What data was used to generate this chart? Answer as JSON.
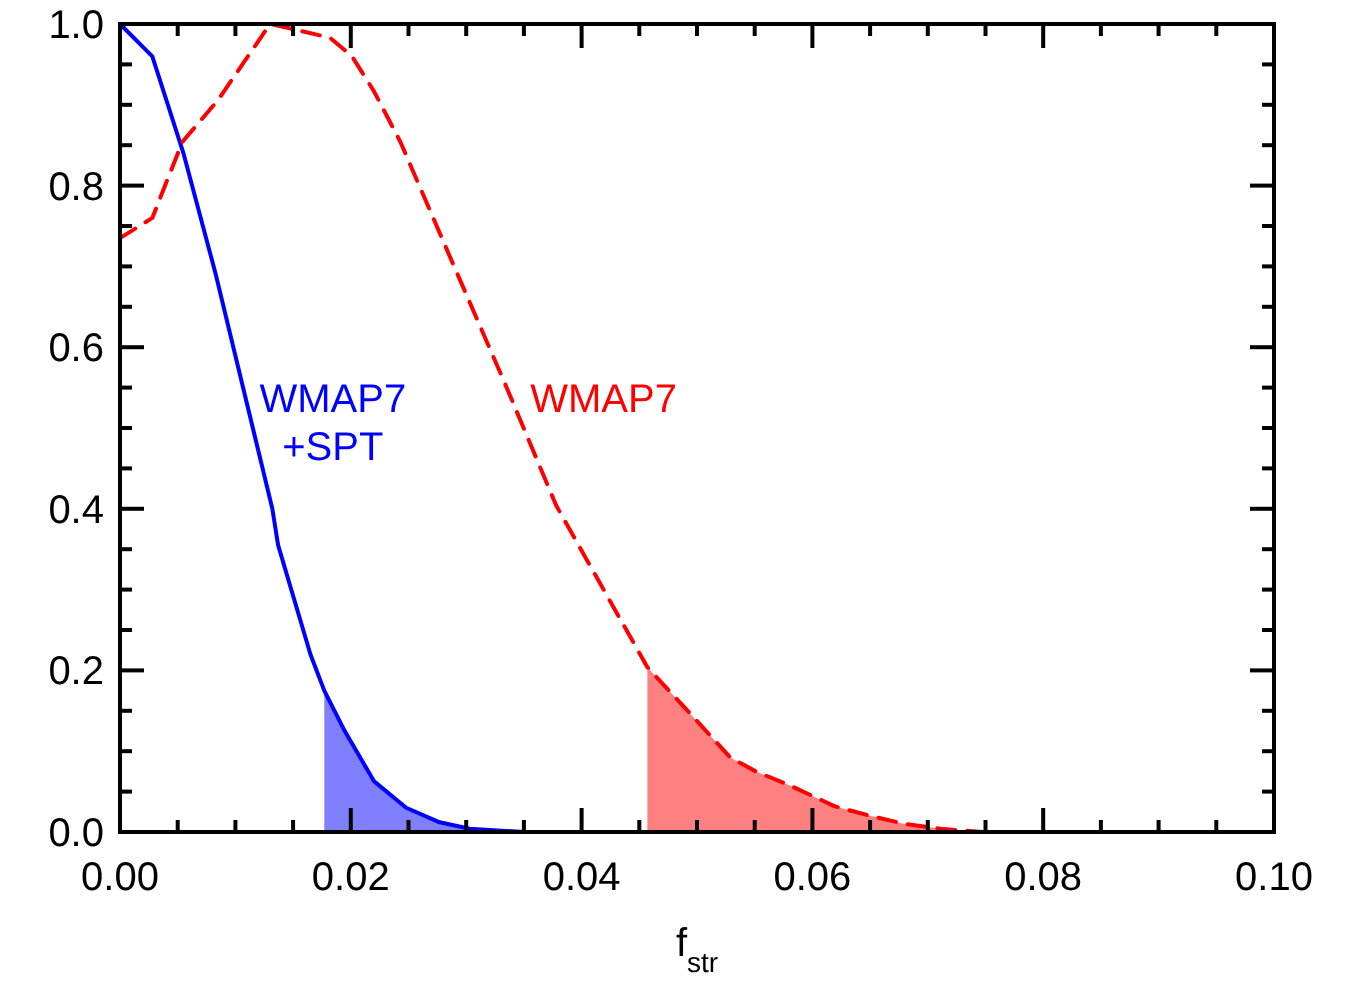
{
  "chart_data": {
    "type": "line",
    "xlabel": "f$_{str}$",
    "xlim": [
      0,
      0.1
    ],
    "ylim": [
      0,
      1.0
    ],
    "xticks": [
      {
        "value": 0,
        "label": "0.00"
      },
      {
        "value": 0.005,
        "label": null
      },
      {
        "value": 0.01,
        "label": null
      },
      {
        "value": 0.015,
        "label": null
      },
      {
        "value": 0.02,
        "label": "0.02"
      },
      {
        "value": 0.025,
        "label": null
      },
      {
        "value": 0.03,
        "label": null
      },
      {
        "value": 0.035,
        "label": null
      },
      {
        "value": 0.04,
        "label": "0.04"
      },
      {
        "value": 0.045,
        "label": null
      },
      {
        "value": 0.05,
        "label": null
      },
      {
        "value": 0.055,
        "label": null
      },
      {
        "value": 0.06,
        "label": "0.06"
      },
      {
        "value": 0.065,
        "label": null
      },
      {
        "value": 0.07,
        "label": null
      },
      {
        "value": 0.075,
        "label": null
      },
      {
        "value": 0.08,
        "label": "0.08"
      },
      {
        "value": 0.085,
        "label": null
      },
      {
        "value": 0.09,
        "label": null
      },
      {
        "value": 0.095,
        "label": null
      },
      {
        "value": 0.1,
        "label": "0.10"
      }
    ],
    "yticks": [
      {
        "value": 0,
        "label": "0.0"
      },
      {
        "value": 0.05,
        "label": null
      },
      {
        "value": 0.1,
        "label": null
      },
      {
        "value": 0.15,
        "label": null
      },
      {
        "value": 0.2,
        "label": "0.2"
      },
      {
        "value": 0.25,
        "label": null
      },
      {
        "value": 0.3,
        "label": null
      },
      {
        "value": 0.35,
        "label": null
      },
      {
        "value": 0.4,
        "label": "0.4"
      },
      {
        "value": 0.45,
        "label": null
      },
      {
        "value": 0.5,
        "label": null
      },
      {
        "value": 0.55,
        "label": null
      },
      {
        "value": 0.6,
        "label": "0.6"
      },
      {
        "value": 0.65,
        "label": null
      },
      {
        "value": 0.7,
        "label": null
      },
      {
        "value": 0.75,
        "label": null
      },
      {
        "value": 0.8,
        "label": "0.8"
      },
      {
        "value": 0.85,
        "label": null
      },
      {
        "value": 0.9,
        "label": null
      },
      {
        "value": 0.95,
        "label": null
      },
      {
        "value": 1.0,
        "label": "1.0"
      }
    ],
    "grid": false,
    "legend": false,
    "series": [
      {
        "type": "area",
        "color": "#8080ff",
        "x": [
          0.0177,
          0.0194,
          0.022,
          0.0248,
          0.0277,
          0.0303,
          0.035
        ],
        "values": [
          0.175,
          0.127,
          0.063,
          0.03,
          0.012,
          0.004,
          0
        ]
      },
      {
        "type": "area",
        "color": "#ff8080",
        "x": [
          0.0457,
          0.049,
          0.0529,
          0.0551,
          0.058,
          0.0619,
          0.065,
          0.068,
          0.0711,
          0.0747
        ],
        "values": [
          0.204,
          0.153,
          0.092,
          0.075,
          0.058,
          0.032,
          0.02,
          0.01,
          0.004,
          0
        ]
      },
      {
        "name": "WMAP7 +SPT",
        "color": "#0000ff",
        "line_style": "solid",
        "x": [
          0,
          0.0028,
          0.0055,
          0.0083,
          0.0132,
          0.0137,
          0.0165,
          0.0177,
          0.0194,
          0.022,
          0.0248,
          0.0277,
          0.0303,
          0.035
        ],
        "values": [
          1.0,
          0.96,
          0.84,
          0.69,
          0.4,
          0.355,
          0.22,
          0.175,
          0.127,
          0.063,
          0.03,
          0.012,
          0.004,
          0
        ]
      },
      {
        "name": "WMAP7",
        "color": "#ff0000",
        "line_style": "dashed",
        "x": [
          0,
          0.0028,
          0.0054,
          0.0085,
          0.013,
          0.0152,
          0.0182,
          0.0201,
          0.022,
          0.0243,
          0.0288,
          0.0333,
          0.0378,
          0.0423,
          0.0457,
          0.049,
          0.0529,
          0.0551,
          0.058,
          0.0619,
          0.065,
          0.068,
          0.0711,
          0.0747
        ],
        "values": [
          0.735,
          0.76,
          0.854,
          0.906,
          1.0,
          0.993,
          0.983,
          0.96,
          0.917,
          0.854,
          0.705,
          0.557,
          0.404,
          0.29,
          0.204,
          0.153,
          0.092,
          0.075,
          0.058,
          0.032,
          0.02,
          0.01,
          0.004,
          0
        ]
      }
    ]
  }
}
